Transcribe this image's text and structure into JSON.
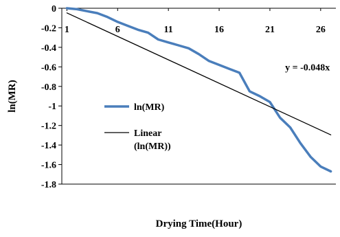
{
  "chart_data": {
    "type": "line",
    "xlabel": "Drying Time(Hour)",
    "ylabel": "ln(MR)",
    "xlim": [
      0.5,
      27.5
    ],
    "ylim": [
      -1.8,
      0
    ],
    "x_ticks": [
      1,
      6,
      11,
      16,
      21,
      26
    ],
    "x_tick_labels": [
      "1",
      "6",
      "11",
      "16",
      "21",
      "26"
    ],
    "y_ticks": [
      0,
      -0.2,
      -0.4,
      -0.6,
      -0.8,
      -1,
      -1.2,
      -1.4,
      -1.6,
      -1.8
    ],
    "y_tick_labels": [
      "0",
      "-0.2",
      "-0.4",
      "-0.6",
      "-0.8",
      "-1",
      "-1.2",
      "-1.4",
      "-1.6",
      "-1.8"
    ],
    "grid": false,
    "legend_position": "left-center",
    "series": [
      {
        "name": "ln(MR)",
        "color": "#4a7ebb",
        "x": [
          1,
          2,
          3,
          4,
          5,
          6,
          7,
          8,
          9,
          10,
          11,
          12,
          13,
          14,
          15,
          16,
          17,
          18,
          19,
          20,
          21,
          22,
          23,
          24,
          25,
          26,
          27
        ],
        "values": [
          0,
          -0.01,
          -0.03,
          -0.05,
          -0.09,
          -0.14,
          -0.18,
          -0.22,
          -0.25,
          -0.32,
          -0.35,
          -0.38,
          -0.41,
          -0.47,
          -0.54,
          -0.58,
          -0.62,
          -0.66,
          -0.85,
          -0.9,
          -0.96,
          -1.12,
          -1.22,
          -1.38,
          -1.52,
          -1.62,
          -1.67
        ]
      },
      {
        "name": "Linear\n(ln(MR))",
        "color": "#000000",
        "x": [
          1,
          27
        ],
        "values": [
          -0.048,
          -1.296
        ]
      }
    ],
    "annotations": [
      {
        "text": "y = -0.048x",
        "x": 22.5,
        "y": -0.6
      }
    ]
  }
}
